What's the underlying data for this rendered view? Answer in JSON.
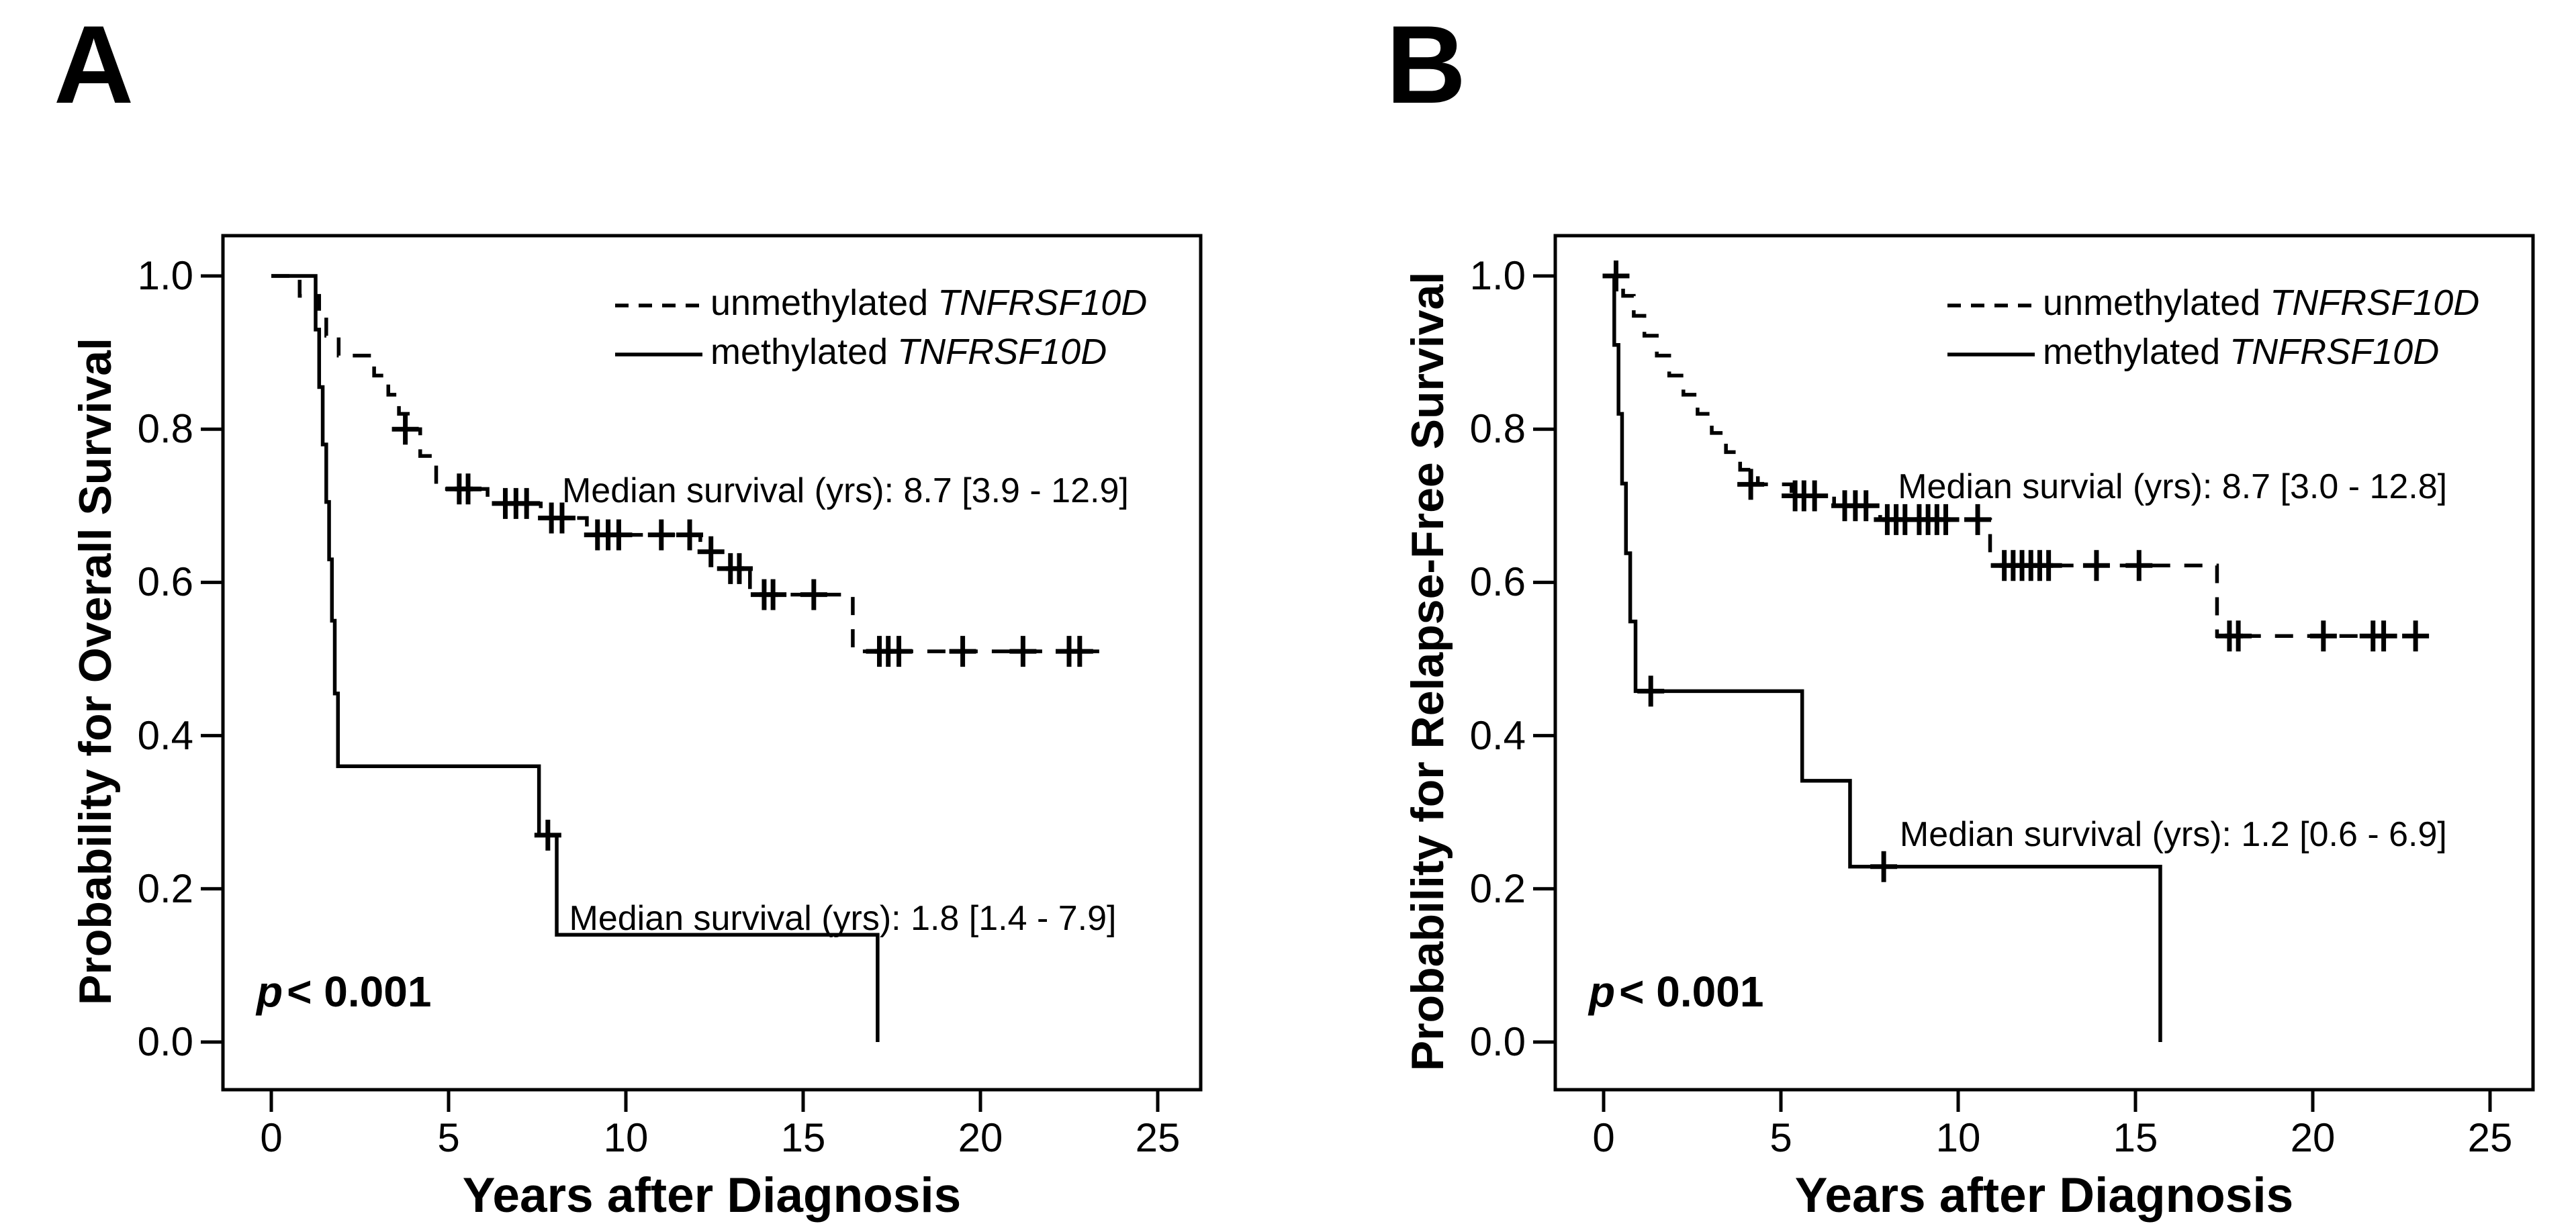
{
  "figure": {
    "background_color": "#ffffff",
    "ink_color": "#000000"
  },
  "chart_data": [
    {
      "type": "line",
      "subtype": "kaplan-meier-step",
      "panel_label": "A",
      "xlabel": "Years after Diagnosis",
      "ylabel": "Probability for Overall Survival",
      "xlim": [
        -1.4,
        26.2
      ],
      "ylim": [
        -0.06,
        1.05
      ],
      "grid": false,
      "legend_position": "top-right-inside",
      "x_ticks": {
        "values": [
          0,
          5,
          10,
          15,
          20,
          25
        ],
        "labels": [
          "0",
          "5",
          "10",
          "15",
          "20",
          "25"
        ]
      },
      "y_ticks": {
        "values": [
          0.0,
          0.2,
          0.4,
          0.6,
          0.8,
          1.0
        ],
        "labels": [
          "0.0",
          "0.2",
          "0.4",
          "0.6",
          "0.8",
          "1.0"
        ]
      },
      "p_value": {
        "symbol": "p",
        "rest": "< 0.001"
      },
      "annotations": [
        {
          "text": "Median survival (yrs): 8.7 [3.9 - 12.9]",
          "x": 8.2,
          "y": 0.706
        },
        {
          "text": "Median survival (yrs): 1.8 [1.4 - 7.9]",
          "x": 8.4,
          "y": 0.148
        }
      ],
      "legend": [
        {
          "label": "unmethylated",
          "gene": "TNFRSF10D",
          "style": "dashed"
        },
        {
          "label": "methylated",
          "gene": "TNFRSF10D",
          "style": "solid"
        }
      ],
      "series": [
        {
          "name": "unmethylated TNFRSF10D",
          "style": "dashed",
          "median_survival_years": 8.7,
          "median_ci": [
            3.9,
            12.9
          ],
          "steps": [
            [
              0,
              1.0
            ],
            [
              0.8,
              0.974
            ],
            [
              1.35,
              0.948
            ],
            [
              1.55,
              0.922
            ],
            [
              1.9,
              0.896
            ],
            [
              2.9,
              0.87
            ],
            [
              3.3,
              0.845
            ],
            [
              3.6,
              0.82
            ],
            [
              3.85,
              0.8
            ],
            [
              4.2,
              0.765
            ],
            [
              4.65,
              0.722
            ],
            [
              6.1,
              0.703
            ],
            [
              7.6,
              0.684
            ],
            [
              8.9,
              0.662
            ],
            [
              12.1,
              0.64
            ],
            [
              12.7,
              0.618
            ],
            [
              13.5,
              0.584
            ],
            [
              16.4,
              0.51
            ]
          ],
          "end_x": 23.35,
          "censors": [
            [
              3.78,
              0.8
            ],
            [
              5.3,
              0.722
            ],
            [
              5.55,
              0.722
            ],
            [
              6.6,
              0.703
            ],
            [
              6.9,
              0.703
            ],
            [
              7.2,
              0.703
            ],
            [
              7.9,
              0.684
            ],
            [
              8.2,
              0.684
            ],
            [
              9.2,
              0.662
            ],
            [
              9.5,
              0.662
            ],
            [
              9.8,
              0.662
            ],
            [
              11.0,
              0.662
            ],
            [
              11.8,
              0.662
            ],
            [
              12.4,
              0.64
            ],
            [
              12.95,
              0.618
            ],
            [
              13.2,
              0.618
            ],
            [
              13.9,
              0.584
            ],
            [
              14.15,
              0.584
            ],
            [
              15.3,
              0.584
            ],
            [
              17.15,
              0.51
            ],
            [
              17.4,
              0.51
            ],
            [
              17.7,
              0.51
            ],
            [
              19.5,
              0.51
            ],
            [
              21.2,
              0.51
            ],
            [
              22.5,
              0.51
            ],
            [
              22.8,
              0.51
            ]
          ]
        },
        {
          "name": "methylated TNFRSF10D",
          "style": "solid",
          "median_survival_years": 1.8,
          "median_ci": [
            1.4,
            7.9
          ],
          "steps": [
            [
              0,
              1.0
            ],
            [
              1.25,
              0.93
            ],
            [
              1.35,
              0.855
            ],
            [
              1.45,
              0.78
            ],
            [
              1.55,
              0.705
            ],
            [
              1.63,
              0.63
            ],
            [
              1.71,
              0.55
            ],
            [
              1.79,
              0.455
            ],
            [
              1.88,
              0.36
            ],
            [
              7.55,
              0.27
            ],
            [
              8.05,
              0.14
            ],
            [
              17.1,
              0.0
            ]
          ],
          "end_x": 17.1,
          "censors": [
            [
              7.8,
              0.27
            ]
          ]
        }
      ]
    },
    {
      "type": "line",
      "subtype": "kaplan-meier-step",
      "panel_label": "B",
      "xlabel": "Years after Diagnosis",
      "ylabel": "Probability for Relapse-Free Survival",
      "xlim": [
        -1.4,
        26.2
      ],
      "ylim": [
        -0.06,
        1.05
      ],
      "grid": false,
      "legend_position": "top-right-inside",
      "x_ticks": {
        "values": [
          0,
          5,
          10,
          15,
          20,
          25
        ],
        "labels": [
          "0",
          "5",
          "10",
          "15",
          "20",
          "25"
        ]
      },
      "y_ticks": {
        "values": [
          0.0,
          0.2,
          0.4,
          0.6,
          0.8,
          1.0
        ],
        "labels": [
          "0.0",
          "0.2",
          "0.4",
          "0.6",
          "0.8",
          "1.0"
        ]
      },
      "p_value": {
        "symbol": "p",
        "rest": "< 0.001"
      },
      "annotations": [
        {
          "text": "Median survial (yrs): 8.7 [3.0 - 12.8]",
          "x": 8.3,
          "y": 0.712
        },
        {
          "text": "Median survival (yrs): 1.2 [0.6 - 6.9]",
          "x": 8.35,
          "y": 0.258
        }
      ],
      "legend": [
        {
          "label": "unmethylated",
          "gene": "TNFRSF10D",
          "style": "dashed"
        },
        {
          "label": "methylated",
          "gene": "TNFRSF10D",
          "style": "solid"
        }
      ],
      "series": [
        {
          "name": "unmethylated TNFRSF10D",
          "style": "dashed",
          "median_survival_years": 8.7,
          "median_ci": [
            3.0,
            12.8
          ],
          "steps": [
            [
              0,
              1.0
            ],
            [
              0.55,
              0.974
            ],
            [
              0.85,
              0.948
            ],
            [
              1.15,
              0.922
            ],
            [
              1.5,
              0.896
            ],
            [
              1.85,
              0.87
            ],
            [
              2.25,
              0.845
            ],
            [
              2.65,
              0.82
            ],
            [
              3.05,
              0.795
            ],
            [
              3.45,
              0.77
            ],
            [
              3.85,
              0.747
            ],
            [
              4.35,
              0.728
            ],
            [
              5.3,
              0.713
            ],
            [
              6.5,
              0.7
            ],
            [
              7.8,
              0.682
            ],
            [
              10.9,
              0.622
            ],
            [
              17.3,
              0.53
            ]
          ],
          "end_x": 23.35,
          "censors": [
            [
              0.35,
              1.0
            ],
            [
              4.15,
              0.728
            ],
            [
              5.4,
              0.713
            ],
            [
              5.65,
              0.713
            ],
            [
              5.95,
              0.713
            ],
            [
              6.8,
              0.7
            ],
            [
              7.1,
              0.7
            ],
            [
              7.4,
              0.7
            ],
            [
              8.0,
              0.682
            ],
            [
              8.25,
              0.682
            ],
            [
              8.5,
              0.682
            ],
            [
              8.9,
              0.682
            ],
            [
              9.15,
              0.682
            ],
            [
              9.4,
              0.682
            ],
            [
              9.65,
              0.682
            ],
            [
              10.55,
              0.682
            ],
            [
              11.3,
              0.622
            ],
            [
              11.55,
              0.622
            ],
            [
              11.8,
              0.622
            ],
            [
              12.05,
              0.622
            ],
            [
              12.3,
              0.622
            ],
            [
              12.55,
              0.622
            ],
            [
              13.9,
              0.622
            ],
            [
              15.1,
              0.622
            ],
            [
              17.65,
              0.53
            ],
            [
              17.9,
              0.53
            ],
            [
              20.3,
              0.53
            ],
            [
              21.7,
              0.53
            ],
            [
              22.0,
              0.53
            ],
            [
              22.9,
              0.53
            ]
          ]
        },
        {
          "name": "methylated TNFRSF10D",
          "style": "solid",
          "median_survival_years": 1.2,
          "median_ci": [
            0.6,
            6.9
          ],
          "steps": [
            [
              0,
              1.0
            ],
            [
              0.3,
              0.91
            ],
            [
              0.42,
              0.82
            ],
            [
              0.52,
              0.729
            ],
            [
              0.63,
              0.638
            ],
            [
              0.75,
              0.549
            ],
            [
              0.9,
              0.458
            ],
            [
              5.6,
              0.341
            ],
            [
              6.95,
              0.229
            ],
            [
              15.7,
              0.0
            ]
          ],
          "end_x": 15.7,
          "censors": [
            [
              1.33,
              0.458
            ],
            [
              7.9,
              0.229
            ]
          ]
        }
      ]
    }
  ]
}
